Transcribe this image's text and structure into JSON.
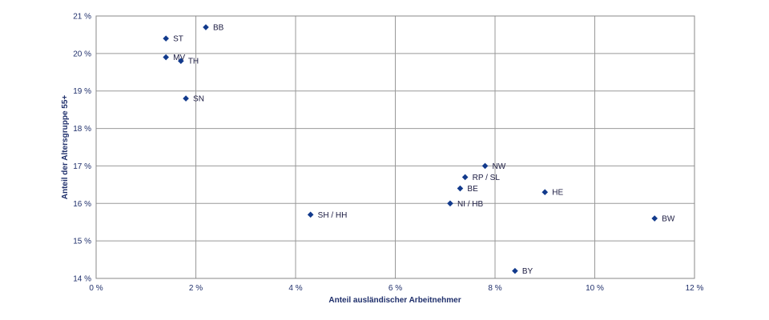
{
  "chart_data": {
    "type": "scatter",
    "title": "",
    "xlabel": "Anteil ausländischer Arbeitnehmer",
    "ylabel": "Anteil der Altersgruppe 55+",
    "xlim": [
      0,
      12
    ],
    "ylim": [
      14,
      21
    ],
    "x_ticks": [
      {
        "value": 0,
        "label": "0 %"
      },
      {
        "value": 2,
        "label": "2 %"
      },
      {
        "value": 4,
        "label": "4 %"
      },
      {
        "value": 6,
        "label": "6 %"
      },
      {
        "value": 8,
        "label": "8 %"
      },
      {
        "value": 10,
        "label": "10 %"
      },
      {
        "value": 12,
        "label": "12 %"
      }
    ],
    "y_ticks": [
      {
        "value": 14,
        "label": "14 %"
      },
      {
        "value": 15,
        "label": "15 %"
      },
      {
        "value": 16,
        "label": "16 %"
      },
      {
        "value": 17,
        "label": "17 %"
      },
      {
        "value": 18,
        "label": "18 %"
      },
      {
        "value": 19,
        "label": "19 %"
      },
      {
        "value": 20,
        "label": "20 %"
      },
      {
        "value": 21,
        "label": "21 %"
      }
    ],
    "grid": true,
    "marker_color": "#123a8c",
    "points": [
      {
        "label": "BB",
        "x": 2.2,
        "y": 20.7
      },
      {
        "label": "ST",
        "x": 1.4,
        "y": 20.4
      },
      {
        "label": "MV",
        "x": 1.4,
        "y": 19.9
      },
      {
        "label": "TH",
        "x": 1.7,
        "y": 19.8
      },
      {
        "label": "SN",
        "x": 1.8,
        "y": 18.8
      },
      {
        "label": "SH / HH",
        "x": 4.3,
        "y": 15.7
      },
      {
        "label": "NW",
        "x": 7.8,
        "y": 17.0
      },
      {
        "label": "RP / SL",
        "x": 7.4,
        "y": 16.7
      },
      {
        "label": "BE",
        "x": 7.3,
        "y": 16.4
      },
      {
        "label": "NI / HB",
        "x": 7.1,
        "y": 16.0
      },
      {
        "label": "HE",
        "x": 9.0,
        "y": 16.3
      },
      {
        "label": "BW",
        "x": 11.2,
        "y": 15.6
      },
      {
        "label": "BY",
        "x": 8.4,
        "y": 14.2
      }
    ]
  }
}
